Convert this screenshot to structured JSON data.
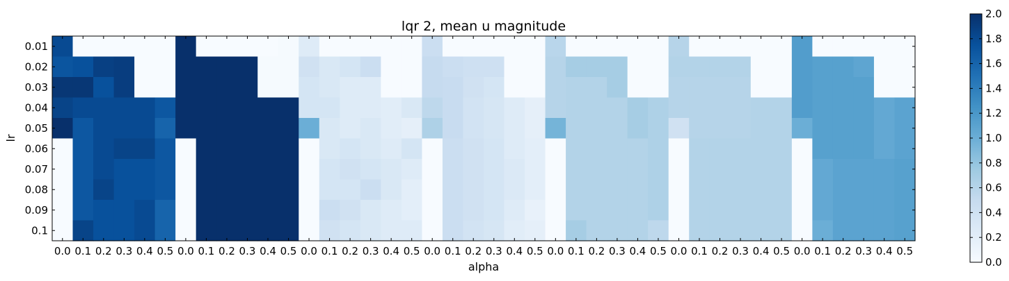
{
  "chart_data": {
    "type": "heatmap",
    "title": "lqr 2, mean u magnitude",
    "xlabel": "alpha",
    "ylabel": "lr",
    "x_tick_labels": [
      "0.0",
      "0.1",
      "0.2",
      "0.3",
      "0.4",
      "0.5",
      "0.0",
      "0.1",
      "0.2",
      "0.3",
      "0.4",
      "0.5",
      "0.0",
      "0.1",
      "0.2",
      "0.3",
      "0.4",
      "0.5",
      "0.0",
      "0.1",
      "0.2",
      "0.3",
      "0.4",
      "0.5",
      "0.0",
      "0.1",
      "0.2",
      "0.3",
      "0.4",
      "0.5",
      "0.0",
      "0.1",
      "0.2",
      "0.3",
      "0.4",
      "0.5",
      "0.0",
      "0.1",
      "0.2",
      "0.3",
      "0.4",
      "0.5"
    ],
    "y_tick_labels": [
      "0.01",
      "0.02",
      "0.03",
      "0.04",
      "0.05",
      "0.06",
      "0.07",
      "0.08",
      "0.09",
      "0.1"
    ],
    "colorbar": {
      "ticks": [
        "0.0",
        "0.2",
        "0.4",
        "0.6",
        "0.8",
        "1.0",
        "1.2",
        "1.4",
        "1.6",
        "1.8",
        "2.0"
      ],
      "range": [
        0,
        2
      ],
      "colormap": "Blues",
      "stops": [
        "#f7fbff",
        "#deebf7",
        "#c6dbef",
        "#9ecae1",
        "#6baed6",
        "#4292c6",
        "#2171b5",
        "#08519c",
        "#08306b"
      ]
    },
    "values": [
      [
        1.8,
        0,
        0,
        0,
        0,
        0,
        2.0,
        0,
        0,
        0,
        0,
        0.02,
        0.25,
        0,
        0,
        0,
        0,
        0,
        0.45,
        0,
        0,
        0,
        0,
        0,
        0.58,
        0,
        0,
        0,
        0,
        0,
        0.6,
        0,
        0,
        0,
        0,
        0,
        1.15,
        0,
        0,
        0,
        0,
        0
      ],
      [
        1.72,
        1.75,
        1.88,
        1.9,
        0,
        0,
        2.0,
        2.0,
        2.0,
        2.0,
        0.02,
        0.02,
        0.4,
        0.3,
        0.35,
        0.45,
        0,
        0,
        0.5,
        0.45,
        0.42,
        0.42,
        0,
        0,
        0.6,
        0.7,
        0.7,
        0.7,
        0,
        0,
        0.62,
        0.62,
        0.62,
        0.62,
        0,
        0,
        1.15,
        1.12,
        1.12,
        1.08,
        0,
        0
      ],
      [
        1.95,
        1.95,
        1.75,
        1.9,
        0,
        0,
        2.0,
        2.0,
        2.0,
        2.0,
        0.02,
        0.02,
        0.35,
        0.3,
        0.25,
        0.25,
        0,
        0,
        0.5,
        0.48,
        0.4,
        0.35,
        0,
        0,
        0.6,
        0.62,
        0.62,
        0.7,
        0,
        0,
        0.6,
        0.6,
        0.6,
        0.6,
        0,
        0,
        1.15,
        1.12,
        1.12,
        1.12,
        0,
        0
      ],
      [
        1.85,
        1.8,
        1.8,
        1.8,
        1.8,
        1.7,
        2.0,
        2.0,
        2.0,
        2.0,
        2.0,
        2.0,
        0.35,
        0.35,
        0.25,
        0.25,
        0.22,
        0.3,
        0.55,
        0.48,
        0.38,
        0.33,
        0.25,
        0.18,
        0.6,
        0.62,
        0.62,
        0.62,
        0.7,
        0.65,
        0.6,
        0.6,
        0.6,
        0.6,
        0.62,
        0.62,
        1.15,
        1.12,
        1.12,
        1.12,
        1.05,
        1.1
      ],
      [
        2.0,
        1.7,
        1.8,
        1.8,
        1.8,
        1.6,
        2.0,
        2.0,
        2.0,
        2.0,
        2.0,
        2.0,
        1.0,
        0.3,
        0.25,
        0.3,
        0.22,
        0.18,
        0.65,
        0.48,
        0.38,
        0.33,
        0.25,
        0.18,
        0.95,
        0.62,
        0.62,
        0.62,
        0.7,
        0.65,
        0.4,
        0.6,
        0.6,
        0.6,
        0.62,
        0.62,
        1.0,
        1.12,
        1.12,
        1.12,
        1.05,
        1.1
      ],
      [
        0,
        1.7,
        1.8,
        1.85,
        1.85,
        1.7,
        0,
        2.0,
        2.0,
        2.0,
        2.0,
        2.0,
        0,
        0.3,
        0.35,
        0.3,
        0.25,
        0.35,
        0,
        0.45,
        0.4,
        0.35,
        0.25,
        0.2,
        0,
        0.62,
        0.62,
        0.62,
        0.62,
        0.65,
        0,
        0.62,
        0.62,
        0.62,
        0.62,
        0.62,
        0,
        1.12,
        1.12,
        1.12,
        1.05,
        1.1
      ],
      [
        0,
        1.7,
        1.8,
        1.75,
        1.75,
        1.7,
        0,
        2.0,
        2.0,
        2.0,
        2.0,
        2.0,
        0,
        0.35,
        0.4,
        0.35,
        0.3,
        0.25,
        0,
        0.45,
        0.4,
        0.35,
        0.28,
        0.2,
        0,
        0.62,
        0.62,
        0.62,
        0.62,
        0.65,
        0,
        0.62,
        0.62,
        0.62,
        0.62,
        0.62,
        0,
        1.05,
        1.1,
        1.1,
        1.1,
        1.12
      ],
      [
        0,
        1.7,
        1.85,
        1.75,
        1.75,
        1.7,
        0,
        2.0,
        2.0,
        2.0,
        2.0,
        2.0,
        0,
        0.35,
        0.35,
        0.45,
        0.3,
        0.2,
        0,
        0.45,
        0.4,
        0.35,
        0.28,
        0.2,
        0,
        0.62,
        0.62,
        0.62,
        0.62,
        0.65,
        0,
        0.62,
        0.62,
        0.62,
        0.62,
        0.62,
        0,
        1.05,
        1.1,
        1.1,
        1.1,
        1.12
      ],
      [
        0,
        1.7,
        1.75,
        1.75,
        1.8,
        1.6,
        0,
        2.0,
        2.0,
        2.0,
        2.0,
        2.0,
        0,
        0.45,
        0.4,
        0.3,
        0.25,
        0.2,
        0,
        0.45,
        0.4,
        0.35,
        0.25,
        0.15,
        0,
        0.62,
        0.62,
        0.62,
        0.62,
        0.65,
        0,
        0.62,
        0.62,
        0.62,
        0.62,
        0.62,
        0,
        1.05,
        1.1,
        1.1,
        1.1,
        1.12
      ],
      [
        0,
        1.85,
        1.75,
        1.75,
        1.8,
        1.6,
        0,
        2.0,
        2.0,
        2.0,
        2.0,
        2.0,
        0,
        0.4,
        0.35,
        0.3,
        0.25,
        0.25,
        0,
        0.45,
        0.38,
        0.33,
        0.22,
        0.18,
        0,
        0.7,
        0.62,
        0.62,
        0.62,
        0.55,
        0,
        0.62,
        0.62,
        0.62,
        0.62,
        0.62,
        0,
        1.0,
        1.1,
        1.1,
        1.1,
        1.12
      ]
    ]
  }
}
